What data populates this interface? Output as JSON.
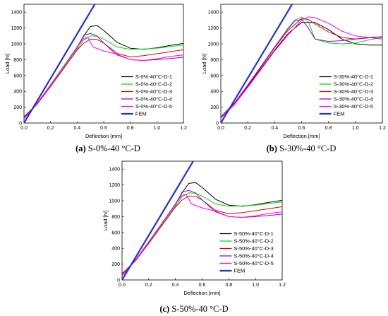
{
  "chart_data": [
    {
      "type": "line",
      "caption_label": "(a)",
      "caption_text": "S-0%-40 °C-D",
      "xlabel": "Deflection [mm]",
      "ylabel": "Load [N]",
      "xlim": [
        0,
        1.2
      ],
      "ylim": [
        0,
        1500
      ],
      "xticks": [
        "0.0",
        "0.2",
        "0.4",
        "0.6",
        "0.8",
        "1.0",
        "1.2"
      ],
      "yticks": [
        "0",
        "200",
        "400",
        "600",
        "800",
        "1000",
        "1200",
        "1400"
      ],
      "legend_position": "right",
      "series": [
        {
          "name": "S-0%-40°C-D-1",
          "color": "#000000",
          "x": [
            0,
            0.1,
            0.2,
            0.3,
            0.4,
            0.45,
            0.5,
            0.55,
            0.6,
            0.7,
            0.8,
            0.9,
            1.0,
            1.1,
            1.2
          ],
          "y": [
            60,
            250,
            480,
            720,
            960,
            1100,
            1220,
            1230,
            1170,
            1020,
            945,
            930,
            950,
            980,
            1005
          ]
        },
        {
          "name": "S-0%-40°C-D-2",
          "color": "#00dd00",
          "x": [
            0,
            0.1,
            0.2,
            0.3,
            0.4,
            0.45,
            0.5,
            0.55,
            0.6,
            0.7,
            0.8,
            0.9,
            1.0,
            1.1,
            1.2
          ],
          "y": [
            60,
            240,
            470,
            700,
            930,
            1050,
            1100,
            1095,
            1060,
            960,
            930,
            935,
            945,
            965,
            985
          ]
        },
        {
          "name": "S-0%-40°C-D-3",
          "color": "#ee0000",
          "x": [
            0,
            0.1,
            0.2,
            0.3,
            0.4,
            0.45,
            0.5,
            0.55,
            0.6,
            0.7,
            0.8,
            0.9,
            1.0,
            1.1,
            1.2
          ],
          "y": [
            80,
            240,
            460,
            690,
            920,
            1010,
            1060,
            1055,
            1010,
            880,
            835,
            850,
            875,
            900,
            925
          ]
        },
        {
          "name": "S-0%-40°C-D-4",
          "color": "#9900cc",
          "x": [
            0,
            0.1,
            0.2,
            0.3,
            0.4,
            0.45,
            0.5,
            0.55,
            0.6,
            0.7,
            0.8,
            0.9,
            1.0,
            1.1,
            1.2
          ],
          "y": [
            70,
            250,
            480,
            720,
            950,
            1110,
            1130,
            1100,
            1010,
            860,
            800,
            790,
            800,
            815,
            830
          ]
        },
        {
          "name": "S-0%-40°C-D-5",
          "color": "#ff00ff",
          "x": [
            0,
            0.1,
            0.2,
            0.3,
            0.4,
            0.45,
            0.48,
            0.52,
            0.6,
            0.7,
            0.8,
            0.9,
            1.0,
            1.1,
            1.2
          ],
          "y": [
            50,
            250,
            480,
            720,
            960,
            1070,
            1080,
            960,
            910,
            870,
            800,
            790,
            810,
            840,
            860
          ]
        },
        {
          "name": "FEM",
          "color": "#1f35c8",
          "x": [
            0,
            0.54
          ],
          "y": [
            0,
            1520
          ]
        }
      ]
    },
    {
      "type": "line",
      "caption_label": "(b)",
      "caption_text": "S-30%-40 °C-D",
      "xlabel": "Deflection [mm]",
      "ylabel": "Load [N]",
      "xlim": [
        0,
        1.2
      ],
      "ylim": [
        0,
        1500
      ],
      "xticks": [
        "0.0",
        "0.2",
        "0.4",
        "0.6",
        "0.8",
        "1.0",
        "1.2"
      ],
      "yticks": [
        "0",
        "200",
        "400",
        "600",
        "800",
        "1000",
        "1200",
        "1400"
      ],
      "legend_position": "right",
      "series": [
        {
          "name": "S-30%-40°C-D-1",
          "color": "#000000",
          "x": [
            0,
            0.1,
            0.2,
            0.3,
            0.4,
            0.5,
            0.6,
            0.7,
            0.8,
            0.9,
            1.0,
            1.1,
            1.2
          ],
          "y": [
            70,
            240,
            460,
            690,
            920,
            1130,
            1270,
            1270,
            1180,
            1060,
            1000,
            985,
            985
          ]
        },
        {
          "name": "S-30%-40°C-D-2",
          "color": "#00dd00",
          "x": [
            0,
            0.1,
            0.2,
            0.3,
            0.4,
            0.5,
            0.55,
            0.6,
            0.65,
            0.7,
            0.8,
            0.9,
            1.0,
            1.1,
            1.2
          ],
          "y": [
            70,
            240,
            470,
            720,
            960,
            1200,
            1300,
            1340,
            1280,
            1060,
            1010,
            1000,
            1010,
            1050,
            1080
          ]
        },
        {
          "name": "S-30%-40°C-D-3",
          "color": "#ee0000",
          "x": [
            0,
            0.1,
            0.2,
            0.3,
            0.4,
            0.5,
            0.6,
            0.65,
            0.7,
            0.8,
            0.9,
            1.0,
            1.1,
            1.2
          ],
          "y": [
            60,
            240,
            470,
            710,
            950,
            1170,
            1320,
            1310,
            1250,
            1150,
            1080,
            1060,
            1075,
            1090
          ]
        },
        {
          "name": "S-30%-40°C-D-4",
          "color": "#9900cc",
          "x": [
            0,
            0.1,
            0.2,
            0.3,
            0.4,
            0.5,
            0.55,
            0.6,
            0.65,
            0.7,
            0.8,
            0.9,
            1.0,
            1.1,
            1.2
          ],
          "y": [
            80,
            250,
            480,
            720,
            960,
            1190,
            1290,
            1310,
            1200,
            1060,
            1030,
            1040,
            1060,
            1080,
            1090
          ]
        },
        {
          "name": "S-30%-40°C-D-5",
          "color": "#ff00ff",
          "x": [
            0,
            0.1,
            0.2,
            0.3,
            0.4,
            0.5,
            0.6,
            0.65,
            0.7,
            0.8,
            0.9,
            1.0,
            1.1,
            1.2
          ],
          "y": [
            60,
            230,
            450,
            680,
            910,
            1110,
            1300,
            1340,
            1330,
            1260,
            1160,
            1100,
            1080,
            1060
          ]
        },
        {
          "name": "FEM",
          "color": "#1f35c8",
          "x": [
            0,
            0.53
          ],
          "y": [
            0,
            1500
          ]
        }
      ]
    },
    {
      "type": "line",
      "caption_label": "(c)",
      "caption_text": "S-50%-40 °C-D",
      "xlabel": "Deflection [mm]",
      "ylabel": "Load [N]",
      "xlim": [
        0,
        1.2
      ],
      "ylim": [
        0,
        1500
      ],
      "xticks": [
        "0.0",
        "0.2",
        "0.4",
        "0.6",
        "0.8",
        "1.0",
        "1.2"
      ],
      "yticks": [
        "0",
        "200",
        "400",
        "600",
        "800",
        "1000",
        "1200",
        "1400"
      ],
      "legend_position": "right",
      "series": [
        {
          "name": "S-50%-40°C-D-1",
          "color": "#000000",
          "x": [
            0,
            0.1,
            0.2,
            0.3,
            0.4,
            0.45,
            0.5,
            0.55,
            0.6,
            0.7,
            0.8,
            0.9,
            1.0,
            1.1,
            1.2
          ],
          "y": [
            60,
            250,
            480,
            720,
            960,
            1100,
            1220,
            1230,
            1170,
            1020,
            945,
            930,
            950,
            980,
            1005
          ]
        },
        {
          "name": "S-50%-40°C-D-2",
          "color": "#00dd00",
          "x": [
            0,
            0.1,
            0.2,
            0.3,
            0.4,
            0.45,
            0.5,
            0.55,
            0.6,
            0.7,
            0.8,
            0.9,
            1.0,
            1.1,
            1.2
          ],
          "y": [
            60,
            240,
            470,
            700,
            930,
            1050,
            1100,
            1095,
            1060,
            960,
            930,
            935,
            945,
            965,
            985
          ]
        },
        {
          "name": "S-50%-40°C-D-3",
          "color": "#ee0000",
          "x": [
            0,
            0.1,
            0.2,
            0.3,
            0.4,
            0.45,
            0.5,
            0.55,
            0.6,
            0.7,
            0.8,
            0.9,
            1.0,
            1.1,
            1.2
          ],
          "y": [
            80,
            240,
            460,
            690,
            920,
            1010,
            1060,
            1055,
            1010,
            880,
            835,
            850,
            875,
            900,
            925
          ]
        },
        {
          "name": "S-50%-40°C-D-4",
          "color": "#9900cc",
          "x": [
            0,
            0.1,
            0.2,
            0.3,
            0.4,
            0.45,
            0.5,
            0.55,
            0.6,
            0.7,
            0.8,
            0.9,
            1.0,
            1.1,
            1.2
          ],
          "y": [
            70,
            250,
            480,
            720,
            950,
            1110,
            1130,
            1100,
            1010,
            860,
            800,
            790,
            800,
            815,
            830
          ]
        },
        {
          "name": "S-50%-40°C-D-5",
          "color": "#ff00ff",
          "x": [
            0,
            0.1,
            0.2,
            0.3,
            0.4,
            0.45,
            0.48,
            0.52,
            0.6,
            0.7,
            0.8,
            0.9,
            1.0,
            1.1,
            1.2
          ],
          "y": [
            50,
            250,
            480,
            720,
            960,
            1070,
            1080,
            960,
            910,
            870,
            800,
            790,
            810,
            840,
            860
          ]
        },
        {
          "name": "FEM",
          "color": "#1f35c8",
          "x": [
            0,
            0.54
          ],
          "y": [
            0,
            1520
          ]
        }
      ]
    }
  ]
}
